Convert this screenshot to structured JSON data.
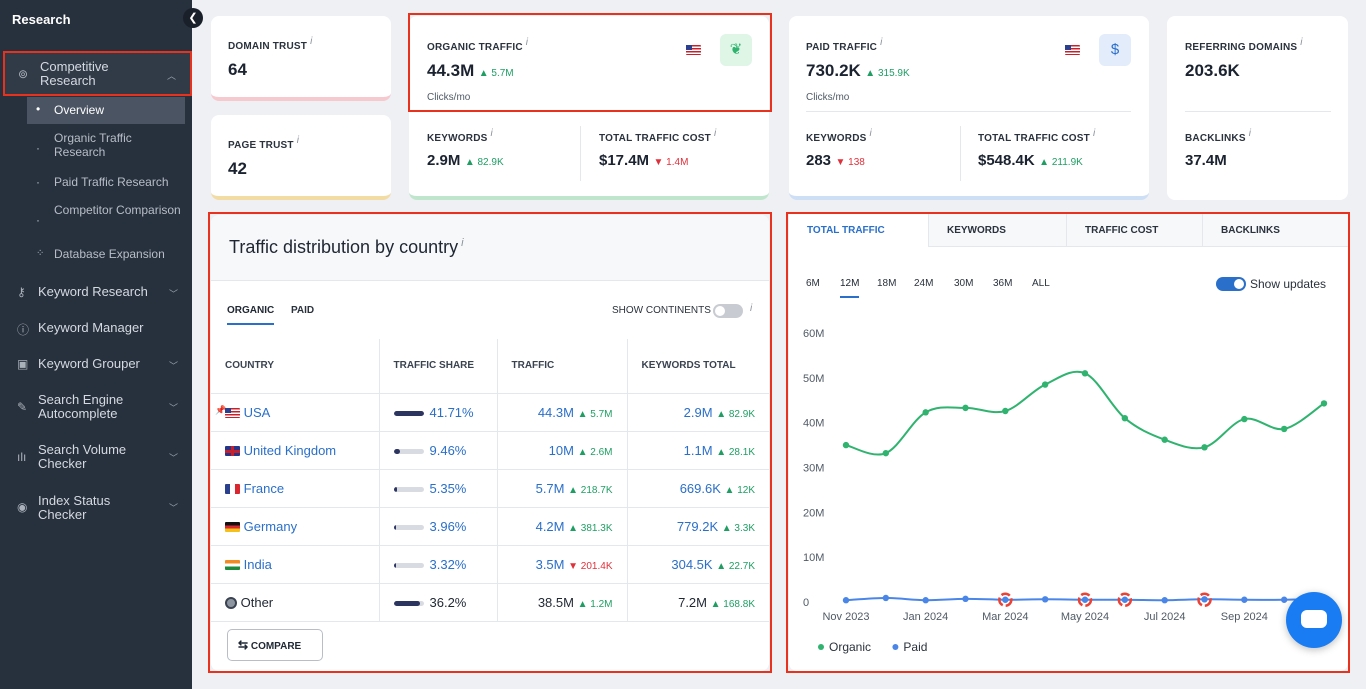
{
  "sidebar": {
    "title": "Research",
    "active_group": "Competitive Research",
    "sub_items": [
      "Overview",
      "Organic Traffic Research",
      "Paid Traffic Research",
      "Competitor Comparison",
      "Database Expansion"
    ],
    "items": [
      "Keyword Research",
      "Keyword Manager",
      "Keyword Grouper",
      "Search Engine Autocomplete",
      "Search Volume Checker",
      "Index Status Checker"
    ]
  },
  "metrics": {
    "domain_trust": {
      "label": "DOMAIN TRUST",
      "value": "64"
    },
    "page_trust": {
      "label": "PAGE TRUST",
      "value": "42"
    },
    "organic": {
      "label": "ORGANIC TRAFFIC",
      "value": "44.3M",
      "delta": "▲ 5.7M",
      "unit": "Clicks/mo",
      "keywords_label": "KEYWORDS",
      "keywords": "2.9M",
      "keywords_delta": "▲ 82.9K",
      "cost_label": "TOTAL TRAFFIC COST",
      "cost": "$17.4M",
      "cost_delta": "▼ 1.4M"
    },
    "paid": {
      "label": "PAID TRAFFIC",
      "value": "730.2K",
      "delta": "▲ 315.9K",
      "unit": "Clicks/mo",
      "keywords_label": "KEYWORDS",
      "keywords": "283",
      "keywords_delta": "▼ 138",
      "cost_label": "TOTAL TRAFFIC COST",
      "cost": "$548.4K",
      "cost_delta": "▲ 211.9K"
    },
    "referring": {
      "label": "REFERRING DOMAINS",
      "value": "203.6K",
      "backlinks_label": "BACKLINKS",
      "backlinks": "37.4M"
    }
  },
  "distribution": {
    "title": "Traffic distribution by country",
    "tabs": [
      "ORGANIC",
      "PAID"
    ],
    "show_continents": "SHOW CONTINENTS",
    "columns": [
      "COUNTRY",
      "TRAFFIC SHARE",
      "TRAFFIC",
      "KEYWORDS TOTAL"
    ],
    "rows": [
      {
        "country": "USA",
        "share": "41.71%",
        "share_frac": 0.4171,
        "traffic": "44.3M",
        "traffic_delta": "▲ 5.7M",
        "tdir": "up",
        "keywords": "2.9M",
        "kw_delta": "▲ 82.9K",
        "kdir": "up",
        "flag": "us",
        "link": true
      },
      {
        "country": "United Kingdom",
        "share": "9.46%",
        "share_frac": 0.0946,
        "traffic": "10M",
        "traffic_delta": "▲ 2.6M",
        "tdir": "up",
        "keywords": "1.1M",
        "kw_delta": "▲ 28.1K",
        "kdir": "up",
        "flag": "uk",
        "link": true
      },
      {
        "country": "France",
        "share": "5.35%",
        "share_frac": 0.0535,
        "traffic": "5.7M",
        "traffic_delta": "▲ 218.7K",
        "tdir": "up",
        "keywords": "669.6K",
        "kw_delta": "▲ 12K",
        "kdir": "up",
        "flag": "fr",
        "link": true
      },
      {
        "country": "Germany",
        "share": "3.96%",
        "share_frac": 0.0396,
        "traffic": "4.2M",
        "traffic_delta": "▲ 381.3K",
        "tdir": "up",
        "keywords": "779.2K",
        "kw_delta": "▲ 3.3K",
        "kdir": "up",
        "flag": "de",
        "link": true
      },
      {
        "country": "India",
        "share": "3.32%",
        "share_frac": 0.0332,
        "traffic": "3.5M",
        "traffic_delta": "▼ 201.4K",
        "tdir": "dn",
        "keywords": "304.5K",
        "kw_delta": "▲ 22.7K",
        "kdir": "up",
        "flag": "in",
        "link": true
      },
      {
        "country": "Other",
        "share": "36.2%",
        "share_frac": 0.362,
        "traffic": "38.5M",
        "traffic_delta": "▲ 1.2M",
        "tdir": "up",
        "keywords": "7.2M",
        "kw_delta": "▲ 168.8K",
        "kdir": "up",
        "flag": "globe",
        "link": false
      }
    ],
    "compare_label": "COMPARE"
  },
  "chart_tabs": [
    "TOTAL TRAFFIC",
    "KEYWORDS",
    "TRAFFIC COST",
    "BACKLINKS"
  ],
  "ranges": [
    "6M",
    "12M",
    "18M",
    "24M",
    "30M",
    "36M",
    "ALL"
  ],
  "active_range": "12M",
  "show_updates": "Show updates",
  "chart_data": {
    "type": "line",
    "x": [
      "Nov 2023",
      "Dec 2023",
      "Jan 2024",
      "Feb 2024",
      "Mar 2024",
      "Apr 2024",
      "May 2024",
      "Jun 2024",
      "Jul 2024",
      "Aug 2024",
      "Sep 2024",
      "Oct 2024",
      "Nov 2024"
    ],
    "x_tick_labels": [
      "Nov 2023",
      "Jan 2024",
      "Mar 2024",
      "May 2024",
      "Jul 2024",
      "Sep 2024"
    ],
    "series": [
      {
        "name": "Organic",
        "color": "#2fb36f",
        "values": [
          35,
          33.2,
          42.3,
          43.3,
          42.6,
          48.5,
          51,
          41,
          36.2,
          34.5,
          40.8,
          38.6,
          44.3
        ]
      },
      {
        "name": "Paid",
        "color": "#4a86e8",
        "values": [
          0.4,
          0.9,
          0.4,
          0.7,
          0.5,
          0.6,
          0.5,
          0.5,
          0.4,
          0.6,
          0.5,
          0.5,
          0.7
        ]
      }
    ],
    "y_ticks": [
      "0",
      "10M",
      "20M",
      "30M",
      "40M",
      "50M",
      "60M"
    ],
    "ylim": [
      0,
      60
    ],
    "update_markers_x": [
      4,
      6,
      7,
      9
    ],
    "legend_position": "bottom-left",
    "grid": false
  }
}
